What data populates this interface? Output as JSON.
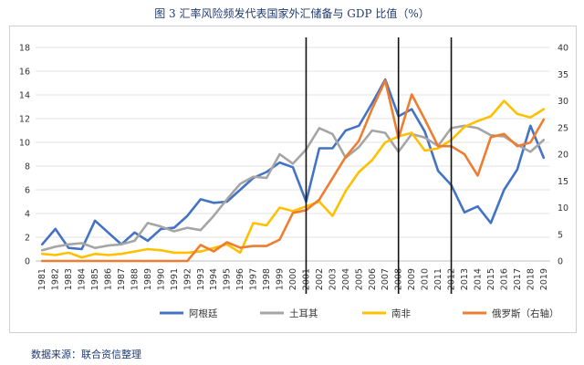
{
  "figure_title": "图 3  汇率风险频发代表国家外汇储备与 GDP 比值（%）",
  "source_note": "数据来源：联合资信整理",
  "chart_data": {
    "type": "line",
    "x": [
      1981,
      1982,
      1983,
      1984,
      1985,
      1986,
      1987,
      1988,
      1989,
      1990,
      1991,
      1992,
      1993,
      1994,
      1995,
      1996,
      1997,
      1998,
      1999,
      2000,
      2001,
      2002,
      2003,
      2004,
      2005,
      2006,
      2007,
      2008,
      2009,
      2010,
      2011,
      2012,
      2013,
      2014,
      2015,
      2016,
      2017,
      2018,
      2019
    ],
    "xlim": [
      1981,
      2019
    ],
    "ylim_left": [
      0,
      18
    ],
    "yticks_left": [
      0,
      2,
      4,
      6,
      8,
      10,
      12,
      14,
      16,
      18
    ],
    "ylim_right": [
      0,
      40
    ],
    "yticks_right": [
      0,
      5,
      10,
      15,
      20,
      25,
      30,
      35,
      40
    ],
    "vlines": [
      2001,
      2008,
      2012
    ],
    "grid": "horizontal",
    "legend_position": "bottom",
    "series": [
      {
        "name": "阿根廷",
        "axis": "left",
        "color": "#4472c4",
        "values": [
          1.4,
          2.7,
          1.1,
          1.0,
          3.4,
          2.4,
          1.4,
          2.4,
          1.7,
          2.7,
          2.8,
          3.8,
          5.2,
          4.9,
          5.0,
          6.0,
          7.0,
          7.5,
          8.3,
          7.9,
          5.0,
          9.5,
          9.5,
          11.0,
          11.4,
          13.3,
          15.3,
          12.2,
          12.8,
          10.9,
          7.6,
          6.4,
          4.1,
          4.6,
          3.2,
          6.0,
          7.7,
          11.4,
          8.7
        ]
      },
      {
        "name": "土耳其",
        "axis": "left",
        "color": "#a5a5a5",
        "values": [
          0.9,
          1.2,
          1.4,
          1.5,
          1.1,
          1.3,
          1.4,
          1.7,
          3.2,
          2.9,
          2.5,
          2.8,
          2.6,
          3.8,
          5.2,
          6.5,
          7.1,
          7.0,
          9.0,
          8.2,
          9.4,
          11.2,
          10.7,
          8.7,
          9.6,
          11.0,
          10.8,
          9.2,
          10.7,
          10.4,
          9.7,
          11.2,
          11.4,
          11.2,
          10.6,
          10.5,
          9.8,
          9.2,
          10.2
        ]
      },
      {
        "name": "南非",
        "axis": "left",
        "color": "#ffc000",
        "values": [
          0.6,
          0.5,
          0.7,
          0.3,
          0.6,
          0.5,
          0.6,
          0.8,
          1.0,
          0.9,
          0.7,
          0.7,
          0.8,
          1.1,
          1.4,
          0.7,
          3.2,
          3.0,
          4.5,
          4.2,
          4.6,
          5.0,
          3.8,
          5.9,
          7.5,
          8.5,
          10.0,
          10.5,
          10.8,
          9.3,
          9.5,
          10.2,
          11.3,
          11.8,
          12.2,
          13.5,
          12.4,
          12.1,
          12.8
        ]
      },
      {
        "name": "俄罗斯（右轴）",
        "axis": "right",
        "color": "#ed7d31",
        "values": [
          0,
          0,
          0,
          0,
          0,
          0,
          0,
          0,
          0,
          0,
          0,
          0,
          3.0,
          1.8,
          3.5,
          2.5,
          2.8,
          2.8,
          4.0,
          9.0,
          9.5,
          11.5,
          15.5,
          19.5,
          22.5,
          28.5,
          33.8,
          23.0,
          31.2,
          26.5,
          21.5,
          21.5,
          20.0,
          16.0,
          23.2,
          23.8,
          21.5,
          22.2,
          26.5
        ]
      }
    ]
  }
}
